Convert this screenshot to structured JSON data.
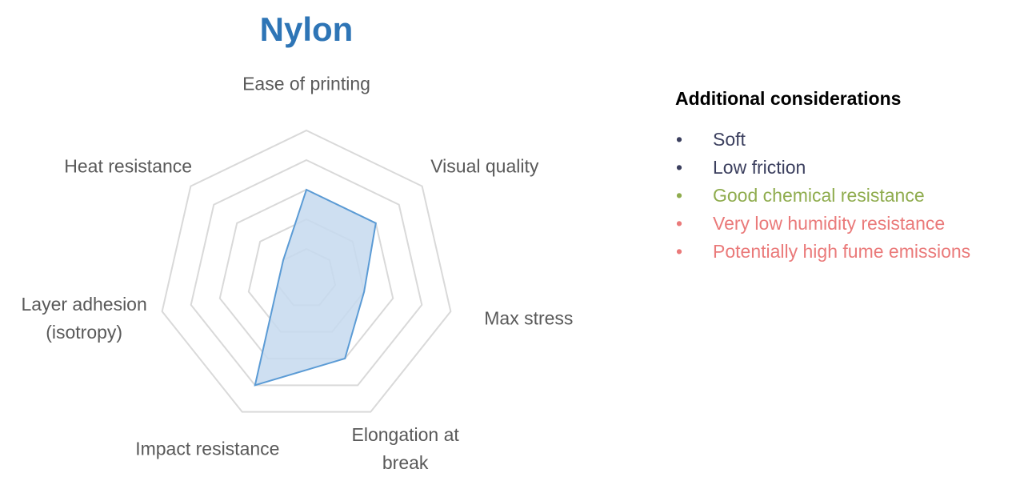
{
  "chart_data": {
    "type": "radar",
    "title": "Nylon",
    "categories": [
      "Ease of printing",
      "Visual quality",
      "Max stress",
      "Elongation at break",
      "Impact resistance",
      "Layer adhesion (isotropy)",
      "Heat resistance"
    ],
    "values": [
      3,
      3,
      2,
      3,
      4,
      1,
      1
    ],
    "color": "#5b9bd5",
    "fill": "#c5d9ee",
    "ylim": [
      0,
      5
    ],
    "yticks": [
      1,
      2,
      3,
      4,
      5
    ],
    "grid": true
  },
  "considerations": {
    "title": "Additional considerations",
    "items": [
      {
        "text": "Soft",
        "color": "#3b3f5e"
      },
      {
        "text": "Low friction",
        "color": "#3b3f5e"
      },
      {
        "text": "Good chemical resistance",
        "color": "#8fac4e"
      },
      {
        "text": "Very low humidity resistance",
        "color": "#ea7a7a"
      },
      {
        "text": "Potentially high fume emissions",
        "color": "#ea7a7a"
      }
    ]
  }
}
